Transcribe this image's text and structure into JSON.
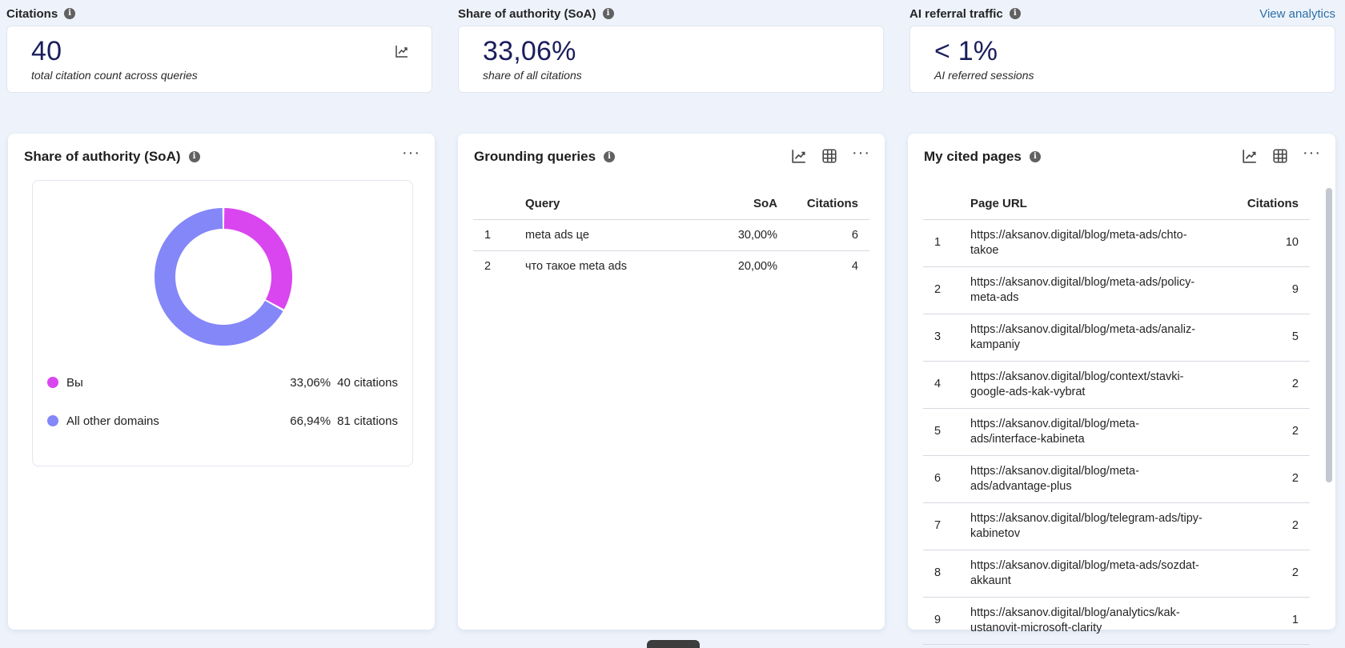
{
  "kpis": [
    {
      "label": "Citations",
      "value": "40",
      "sub": "total citation count across queries",
      "icon": "trend-chart-icon"
    },
    {
      "label": "Share of authority (SoA)",
      "value": "33,06%",
      "sub": "share of all citations"
    },
    {
      "label": "AI referral traffic",
      "value": "< 1%",
      "sub": "AI referred sessions",
      "link": "View analytics"
    }
  ],
  "soa_panel": {
    "title": "Share of authority (SoA)",
    "more": "···",
    "legend": [
      {
        "label": "Вы",
        "pct": "33,06%",
        "citations": "40 citations",
        "color": "#d946ef"
      },
      {
        "label": "All other domains",
        "pct": "66,94%",
        "citations": "81 citations",
        "color": "#8487f7"
      }
    ]
  },
  "chart_data": {
    "type": "pie",
    "categories": [
      "Вы",
      "All other domains"
    ],
    "values": [
      33.06,
      66.94
    ],
    "colors": [
      "#d946ef",
      "#8487f7"
    ]
  },
  "queries_panel": {
    "title": "Grounding queries",
    "more": "···",
    "columns": [
      "",
      "Query",
      "SoA",
      "Citations"
    ],
    "rows": [
      {
        "idx": "1",
        "query": "meta ads це",
        "soa": "30,00%",
        "citations": "6"
      },
      {
        "idx": "2",
        "query": "что такое meta ads",
        "soa": "20,00%",
        "citations": "4"
      }
    ]
  },
  "pages_panel": {
    "title": "My cited pages",
    "more": "···",
    "columns": [
      "",
      "Page URL",
      "Citations"
    ],
    "rows": [
      {
        "idx": "1",
        "url": "https://aksanov.digital/blog/meta-ads/chto-takoe",
        "citations": "10"
      },
      {
        "idx": "2",
        "url": "https://aksanov.digital/blog/meta-ads/policy-meta-ads",
        "citations": "9"
      },
      {
        "idx": "3",
        "url": "https://aksanov.digital/blog/meta-ads/analiz-kampaniy",
        "citations": "5"
      },
      {
        "idx": "4",
        "url": "https://aksanov.digital/blog/context/stavki-google-ads-kak-vybrat",
        "citations": "2"
      },
      {
        "idx": "5",
        "url": "https://aksanov.digital/blog/meta-ads/interface-kabineta",
        "citations": "2"
      },
      {
        "idx": "6",
        "url": "https://aksanov.digital/blog/meta-ads/advantage-plus",
        "citations": "2"
      },
      {
        "idx": "7",
        "url": "https://aksanov.digital/blog/telegram-ads/tipy-kabinetov",
        "citations": "2"
      },
      {
        "idx": "8",
        "url": "https://aksanov.digital/blog/meta-ads/sozdat-akkaunt",
        "citations": "2"
      },
      {
        "idx": "9",
        "url": "https://aksanov.digital/blog/analytics/kak-ustanovit-microsoft-clarity",
        "citations": "1"
      }
    ]
  }
}
